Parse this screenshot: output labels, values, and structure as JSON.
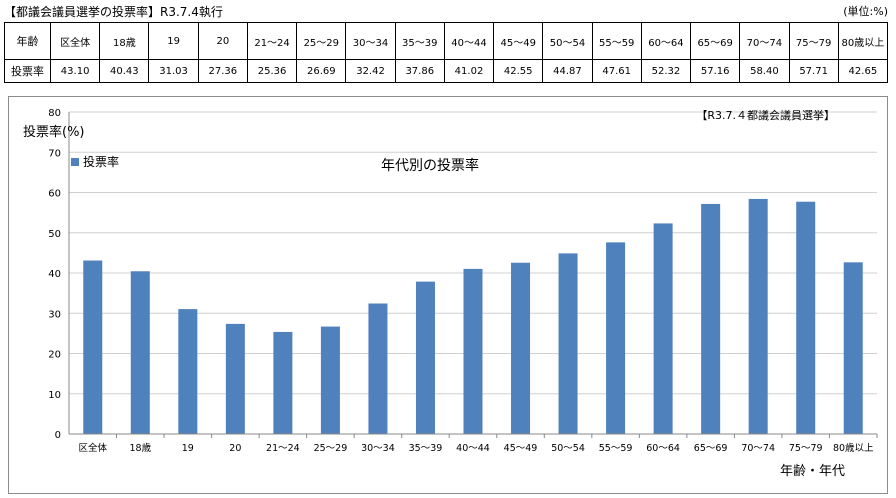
{
  "header": {
    "title": "【都議会議員選挙の投票率】R3.7.4執行",
    "unit": "(単位:%)"
  },
  "table": {
    "row_header_label": "年齢",
    "row_value_label": "投票率",
    "columns": [
      "区全体",
      "18歳",
      "19",
      "20",
      "21～24",
      "25～29",
      "30～34",
      "35～39",
      "40～44",
      "45～49",
      "50～54",
      "55～59",
      "60～64",
      "65～69",
      "70～74",
      "75～79",
      "80歳以上"
    ],
    "values": [
      "43.10",
      "40.43",
      "31.03",
      "27.36",
      "25.36",
      "26.69",
      "32.42",
      "37.86",
      "41.02",
      "42.55",
      "44.87",
      "47.61",
      "52.32",
      "57.16",
      "58.40",
      "57.71",
      "42.65"
    ]
  },
  "chart_data": {
    "type": "bar",
    "title": "年代別の投票率",
    "corner_note": "【R3.7.４都議会議員選挙】",
    "ylabel": "投票率(%)",
    "xlabel": "年齢・年代",
    "ylim": [
      0,
      80
    ],
    "yticks": [
      0,
      10,
      20,
      30,
      40,
      50,
      60,
      70,
      80
    ],
    "grid": true,
    "legend_position": "top-left",
    "bar_color": "#4f81bd",
    "categories": [
      "区全体",
      "18歳",
      "19",
      "20",
      "21～24",
      "25～29",
      "30～34",
      "35～39",
      "40～44",
      "45～49",
      "50～54",
      "55～59",
      "60～64",
      "65～69",
      "70～74",
      "75～79",
      "80歳以上"
    ],
    "series": [
      {
        "name": "投票率",
        "values": [
          43.1,
          40.43,
          31.03,
          27.36,
          25.36,
          26.69,
          32.42,
          37.86,
          41.02,
          42.55,
          44.87,
          47.61,
          52.32,
          57.16,
          58.4,
          57.71,
          42.65
        ]
      }
    ]
  }
}
